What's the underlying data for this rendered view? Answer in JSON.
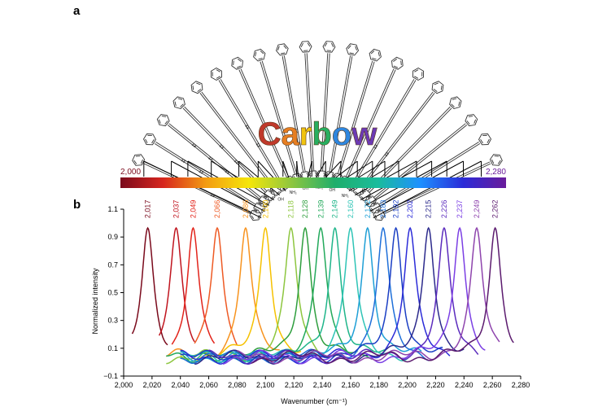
{
  "panel_a": {
    "label": "a",
    "title_word": "Carbow",
    "title_letters": [
      {
        "char": "C",
        "color": "#c0392b"
      },
      {
        "char": "a",
        "color": "#e67e22"
      },
      {
        "char": "r",
        "color": "#f1c40f"
      },
      {
        "char": "b",
        "color": "#27ae60"
      },
      {
        "char": "o",
        "color": "#2e86de"
      },
      {
        "char": "w",
        "color": "#6c3ab4"
      }
    ],
    "isotope_label": "13",
    "substituents": [
      "NH₂",
      "NH₂",
      "OH",
      "NH₂",
      "OH",
      "NH₂",
      "OH",
      "NH₂"
    ],
    "colorbar": {
      "min_label": "2,000",
      "max_label": "2,280",
      "min_color": "#7a0a1c",
      "max_color": "#6a1b9a",
      "stops": [
        "#7a0a1c",
        "#d7261e",
        "#f39c12",
        "#f5e60a",
        "#8dc63f",
        "#1fae6b",
        "#1abc9c",
        "#1e90ff",
        "#2b2bd8",
        "#6a1b9a"
      ]
    }
  },
  "chart_data": {
    "type": "line",
    "panel_label": "b",
    "xlabel": "Wavenumber (cm⁻¹)",
    "ylabel": "Normalized intensity",
    "xlim": [
      2000,
      2280
    ],
    "ylim": [
      -0.1,
      1.1
    ],
    "x_ticks": [
      "2,000",
      "2,020",
      "2,040",
      "2,060",
      "2,080",
      "2,100",
      "2,120",
      "2,140",
      "2,160",
      "2,180",
      "2,200",
      "2,220",
      "2,240",
      "2,260",
      "2,280"
    ],
    "y_ticks": [
      "−0.1",
      "0.1",
      "0.3",
      "0.5",
      "0.7",
      "0.9",
      "1.1"
    ],
    "grid": false,
    "series": [
      {
        "peak": 2017,
        "label": "2,017",
        "color": "#7a0a1c",
        "x_start": 2006,
        "x_end": 2031
      },
      {
        "peak": 2037,
        "label": "2,037",
        "color": "#c0141e",
        "x_start": 2025,
        "x_end": 2050
      },
      {
        "peak": 2049,
        "label": "2,049",
        "color": "#e2231a",
        "x_start": 2034,
        "x_end": 2064
      },
      {
        "peak": 2066,
        "label": "2,066",
        "color": "#ee5a24",
        "x_start": 2050,
        "x_end": 2080
      },
      {
        "peak": 2086,
        "label": "2,086",
        "color": "#f7931e",
        "x_start": 2030,
        "x_end": 2110
      },
      {
        "peak": 2100,
        "label": "2,100",
        "color": "#f6c100",
        "x_start": 2040,
        "x_end": 2125
      },
      {
        "peak": 2118,
        "label": "2,118",
        "color": "#8dc63f",
        "x_start": 2030,
        "x_end": 2150
      },
      {
        "peak": 2128,
        "label": "2,128",
        "color": "#2e9e3e",
        "x_start": 2040,
        "x_end": 2165
      },
      {
        "peak": 2139,
        "label": "2,139",
        "color": "#22a95b",
        "x_start": 2030,
        "x_end": 2175
      },
      {
        "peak": 2149,
        "label": "2,149",
        "color": "#1fb58a",
        "x_start": 2040,
        "x_end": 2185
      },
      {
        "peak": 2160,
        "label": "2,160",
        "color": "#2ec4b6",
        "x_start": 2040,
        "x_end": 2200
      },
      {
        "peak": 2172,
        "label": "2,172",
        "color": "#1e9fd6",
        "x_start": 2040,
        "x_end": 2210
      },
      {
        "peak": 2183,
        "label": "2,183",
        "color": "#1e6fd9",
        "x_start": 2040,
        "x_end": 2215
      },
      {
        "peak": 2192,
        "label": "2,192",
        "color": "#1b3fc4",
        "x_start": 2040,
        "x_end": 2225
      },
      {
        "peak": 2202,
        "label": "2,202",
        "color": "#2b2bd8",
        "x_start": 2040,
        "x_end": 2230
      },
      {
        "peak": 2215,
        "label": "2,215",
        "color": "#2c2a8c",
        "x_start": 2050,
        "x_end": 2240
      },
      {
        "peak": 2226,
        "label": "2,226",
        "color": "#5b2bbd",
        "x_start": 2060,
        "x_end": 2250
      },
      {
        "peak": 2237,
        "label": "2,237",
        "color": "#7b3fe4",
        "x_start": 2070,
        "x_end": 2255
      },
      {
        "peak": 2249,
        "label": "2,249",
        "color": "#8e44ad",
        "x_start": 2080,
        "x_end": 2265
      },
      {
        "peak": 2262,
        "label": "2,262",
        "color": "#5b1a6e",
        "x_start": 2090,
        "x_end": 2275
      }
    ]
  }
}
